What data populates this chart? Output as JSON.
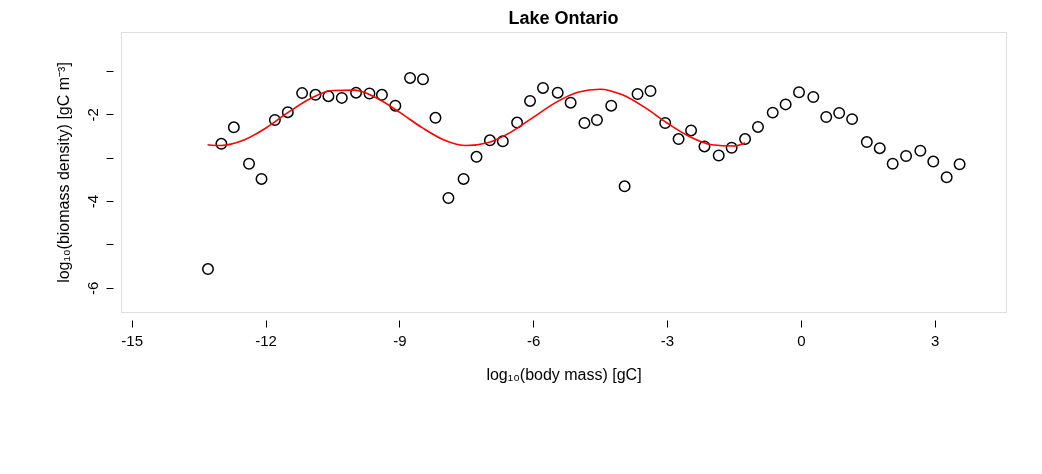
{
  "chart_data": {
    "type": "scatter",
    "title": "Lake Ontario",
    "xlabel": "log₁₀(body mass) [gC]",
    "ylabel": "log₁₀(biomass density) [gC m⁻³]",
    "xlim": [
      -15.24,
      4.6
    ],
    "ylim": [
      -6.56,
      -0.1
    ],
    "xticks": [
      -15,
      -12,
      -9,
      -6,
      -3,
      0,
      3
    ],
    "yticks": [
      -6,
      {
        "value": -5,
        "label": null
      },
      -4,
      {
        "value": -3,
        "label": null
      },
      -2,
      {
        "value": -1,
        "label": null
      }
    ],
    "grid": false,
    "marker": "circle",
    "series": [
      {
        "color": "#000000",
        "x": [
          -13.29,
          -12.99,
          -12.71,
          -12.37,
          -12.09,
          -11.79,
          -11.5,
          -11.18,
          -10.88,
          -10.59,
          -10.29,
          -9.97,
          -9.67,
          -9.39,
          -9.09,
          -8.76,
          -8.47,
          -8.19,
          -7.9,
          -7.56,
          -7.27,
          -6.97,
          -6.68,
          -6.36,
          -6.07,
          -5.78,
          -5.45,
          -5.16,
          -4.85,
          -4.57,
          -4.25,
          -3.95,
          -3.66,
          -3.37,
          -3.04,
          -2.74,
          -2.46,
          -2.16,
          -1.84,
          -1.55,
          -1.25,
          -0.96,
          -0.63,
          -0.34,
          -0.04,
          0.28,
          0.57,
          0.86,
          1.15,
          1.48,
          1.77,
          2.06,
          2.36,
          2.68,
          2.97,
          3.27,
          3.56
        ],
        "values": [
          -5.57,
          -2.68,
          -2.3,
          -3.14,
          -3.49,
          -2.13,
          -1.95,
          -1.51,
          -1.55,
          -1.58,
          -1.62,
          -1.5,
          -1.52,
          -1.55,
          -1.8,
          -1.16,
          -1.19,
          -2.08,
          -3.93,
          -3.49,
          -2.98,
          -2.6,
          -2.62,
          -2.19,
          -1.69,
          -1.39,
          -1.5,
          -1.73,
          -2.2,
          -2.13,
          -1.8,
          -3.66,
          -1.53,
          -1.46,
          -2.2,
          -2.57,
          -2.37,
          -2.74,
          -2.95,
          -2.77,
          -2.57,
          -2.29,
          -1.96,
          -1.77,
          -1.49,
          -1.6,
          -2.06,
          -1.97,
          -2.11,
          -2.64,
          -2.78,
          -3.14,
          -2.96,
          -2.84,
          -3.09,
          -3.45,
          -3.15
        ]
      },
      {
        "type": "line",
        "color": "#ff0000",
        "marker": "none",
        "line_style": "solid",
        "x": [
          -13.3,
          -13.0,
          -12.5,
          -12.0,
          -11.5,
          -11.0,
          -10.5,
          -10.0,
          -9.5,
          -9.0,
          -8.5,
          -8.0,
          -7.5,
          -7.0,
          -6.5,
          -6.0,
          -5.5,
          -5.0,
          -4.5,
          -4.0,
          -3.5,
          -3.0,
          -2.5,
          -2.0,
          -1.5,
          -1.25
        ],
        "values": [
          -2.7,
          -2.72,
          -2.6,
          -2.32,
          -1.96,
          -1.64,
          -1.45,
          -1.44,
          -1.63,
          -1.95,
          -2.3,
          -2.59,
          -2.72,
          -2.65,
          -2.41,
          -2.07,
          -1.73,
          -1.49,
          -1.42,
          -1.55,
          -1.84,
          -2.2,
          -2.51,
          -2.7,
          -2.73,
          -2.66
        ]
      }
    ]
  }
}
